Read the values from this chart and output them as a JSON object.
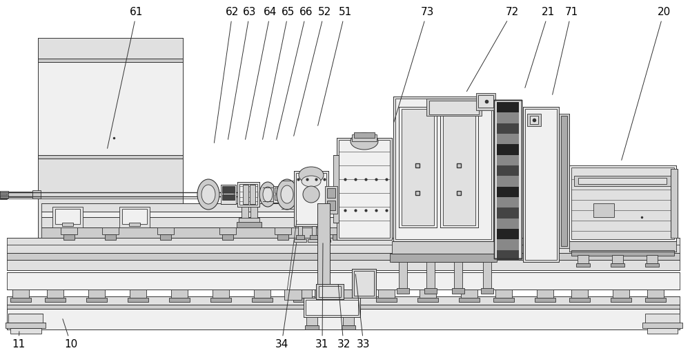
{
  "bg_color": "#ffffff",
  "lc": "#333333",
  "lc2": "#555555",
  "gray1": "#f0f0f0",
  "gray2": "#e0e0e0",
  "gray3": "#cccccc",
  "gray4": "#aaaaaa",
  "gray5": "#888888",
  "dark1": "#444444",
  "dark2": "#222222",
  "figsize": [
    10.0,
    5.15
  ],
  "dpi": 100,
  "leaders": [
    [
      "61",
      155,
      218,
      198,
      18
    ],
    [
      "62",
      310,
      210,
      337,
      18
    ],
    [
      "63",
      330,
      205,
      362,
      18
    ],
    [
      "64",
      355,
      205,
      392,
      18
    ],
    [
      "65",
      380,
      205,
      418,
      18
    ],
    [
      "66",
      400,
      205,
      444,
      18
    ],
    [
      "52",
      425,
      200,
      470,
      18
    ],
    [
      "51",
      460,
      185,
      500,
      18
    ],
    [
      "73",
      570,
      180,
      619,
      18
    ],
    [
      "72",
      675,
      135,
      742,
      18
    ],
    [
      "21",
      760,
      130,
      795,
      18
    ],
    [
      "71",
      800,
      140,
      828,
      18
    ],
    [
      "20",
      900,
      235,
      962,
      18
    ],
    [
      "11",
      28,
      478,
      27,
      500
    ],
    [
      "10",
      90,
      460,
      103,
      500
    ],
    [
      "34",
      430,
      350,
      408,
      500
    ],
    [
      "31",
      468,
      350,
      467,
      500
    ],
    [
      "32",
      490,
      410,
      498,
      500
    ],
    [
      "33",
      515,
      395,
      527,
      500
    ]
  ]
}
